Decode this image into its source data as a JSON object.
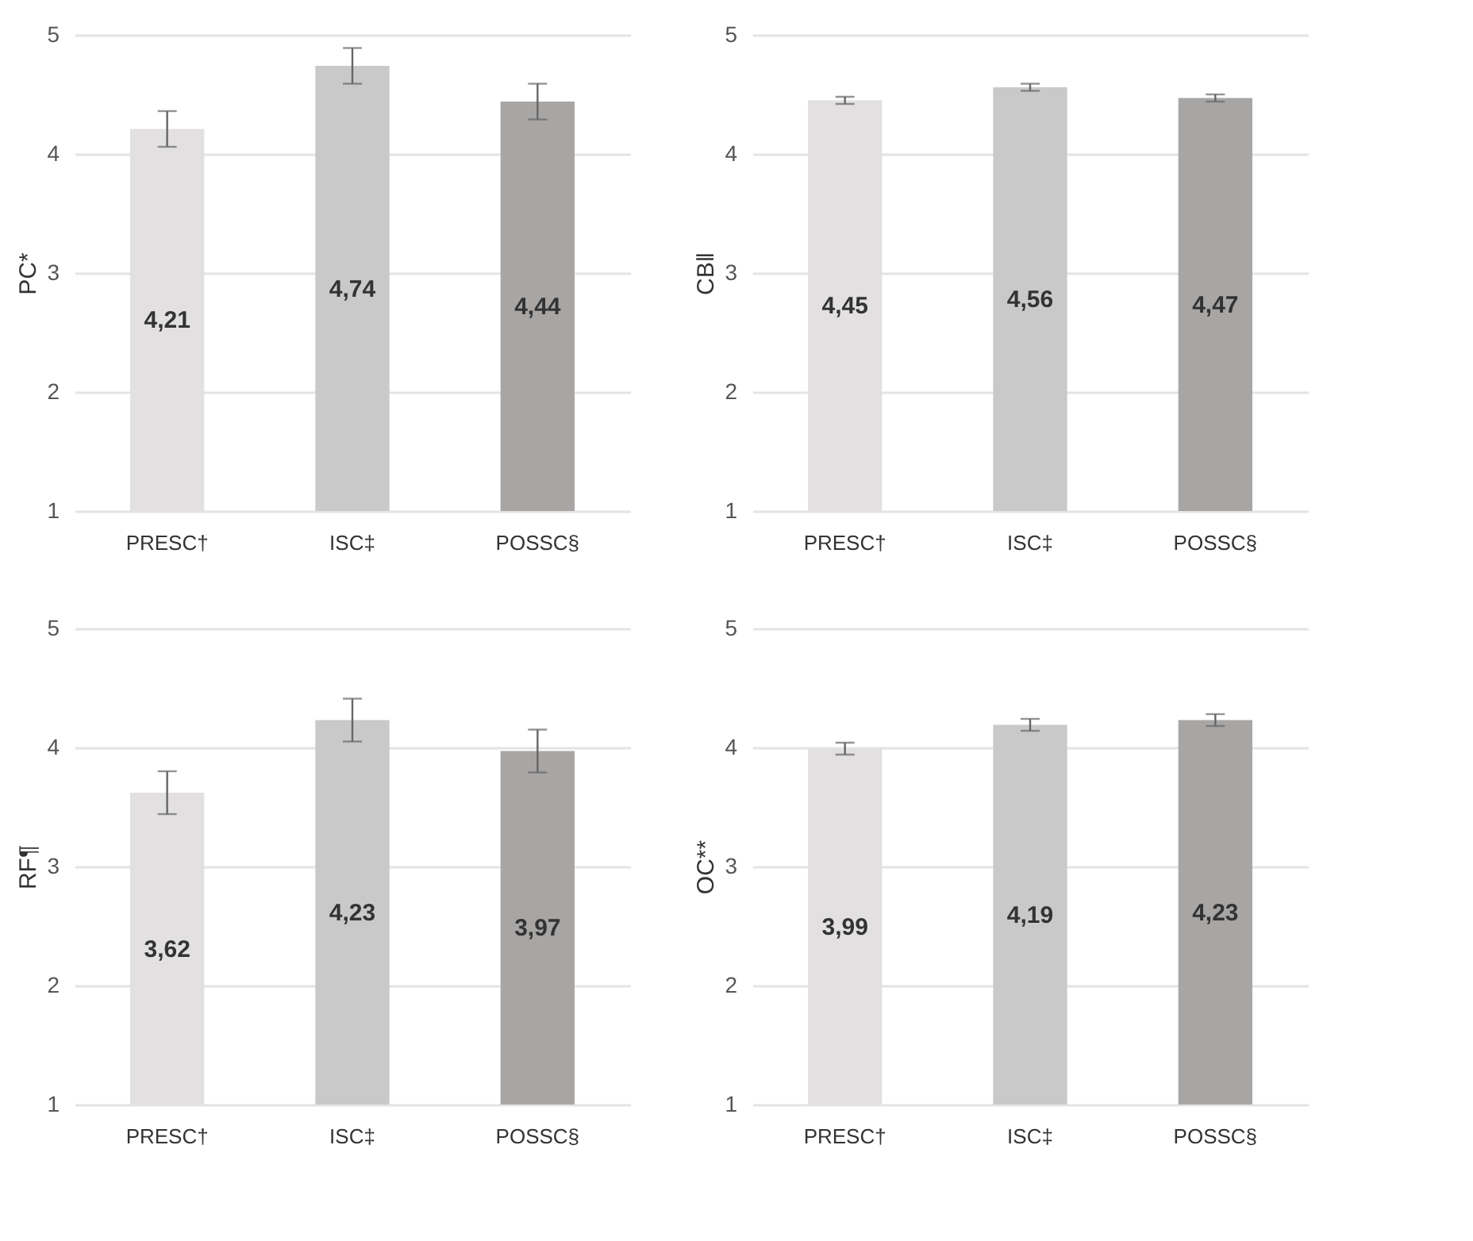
{
  "chart_data": [
    {
      "type": "bar",
      "ylabel": "PC*",
      "categories": [
        "PRESC†",
        "ISC‡",
        "POSSC§"
      ],
      "values": [
        4.21,
        4.74,
        4.44
      ],
      "errors": [
        0.15,
        0.15,
        0.15
      ],
      "value_labels": [
        "4,21",
        "4,74",
        "4,44"
      ],
      "colors": [
        "#e2e0e1",
        "#c9c9c9",
        "#a8a6a5"
      ],
      "ylim": [
        1,
        5
      ],
      "yticks": [
        1,
        2,
        3,
        4,
        5
      ],
      "grid": "y"
    },
    {
      "type": "bar",
      "ylabel": "CB‖",
      "categories": [
        "PRESC†",
        "ISC‡",
        "POSSC§"
      ],
      "values": [
        4.45,
        4.56,
        4.47
      ],
      "errors": [
        0.03,
        0.03,
        0.03
      ],
      "value_labels": [
        "4,45",
        "4,56",
        "4,47"
      ],
      "colors": [
        "#e2e0e1",
        "#c9c9c9",
        "#a8a6a5"
      ],
      "ylim": [
        1,
        5
      ],
      "yticks": [
        1,
        2,
        3,
        4,
        5
      ],
      "grid": "y"
    },
    {
      "type": "bar",
      "ylabel": "RF¶",
      "categories": [
        "PRESC†",
        "ISC‡",
        "POSSC§"
      ],
      "values": [
        3.62,
        4.23,
        3.97
      ],
      "errors": [
        0.18,
        0.18,
        0.18
      ],
      "value_labels": [
        "3,62",
        "4,23",
        "3,97"
      ],
      "colors": [
        "#e2e0e1",
        "#c9c9c9",
        "#a8a6a5"
      ],
      "ylim": [
        1,
        5
      ],
      "yticks": [
        1,
        2,
        3,
        4,
        5
      ],
      "grid": "y"
    },
    {
      "type": "bar",
      "ylabel": "OC**",
      "categories": [
        "PRESC†",
        "ISC‡",
        "POSSC§"
      ],
      "values": [
        3.99,
        4.19,
        4.23
      ],
      "errors": [
        0.05,
        0.05,
        0.05
      ],
      "value_labels": [
        "3,99",
        "4,19",
        "4,23"
      ],
      "colors": [
        "#e2e0e1",
        "#c9c9c9",
        "#a8a6a5"
      ],
      "ylim": [
        1,
        5
      ],
      "yticks": [
        1,
        2,
        3,
        4,
        5
      ],
      "grid": "y"
    }
  ]
}
